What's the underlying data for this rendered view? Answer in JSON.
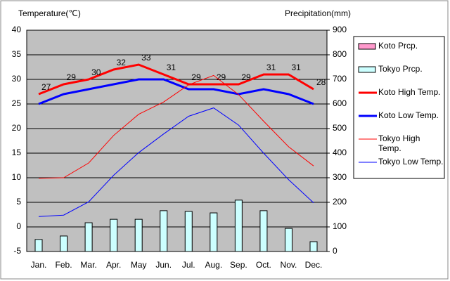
{
  "chart_data": {
    "type": "line",
    "ylabel": "Temperature(℃)",
    "y2label": "Precipitation(mm)",
    "categories": [
      "Jan.",
      "Feb.",
      "Mar.",
      "Apr.",
      "May",
      "Jun.",
      "Jul.",
      "Aug.",
      "Sep.",
      "Oct.",
      "Nov.",
      "Dec."
    ],
    "ylim": [
      -5,
      40
    ],
    "yticks": [
      -5,
      0,
      5,
      10,
      15,
      20,
      25,
      30,
      35,
      40
    ],
    "y2lim": [
      0,
      900
    ],
    "y2ticks": [
      0,
      100,
      200,
      300,
      400,
      500,
      600,
      700,
      800,
      900
    ],
    "grid": true,
    "legend": "right",
    "series": [
      {
        "name": "Koto Prcp.",
        "type": "bar",
        "axis": "y2",
        "color": "#ff99cc",
        "values": [
          null,
          null,
          null,
          null,
          null,
          null,
          null,
          null,
          null,
          null,
          null,
          null
        ]
      },
      {
        "name": "Tokyo Prcp.",
        "type": "bar",
        "axis": "y2",
        "color": "#ccffff",
        "values": [
          49,
          63,
          117,
          131,
          131,
          166,
          163,
          157,
          209,
          166,
          94,
          40
        ]
      },
      {
        "name": "Koto High Temp.",
        "type": "line",
        "color": "#ff0000",
        "width": 3,
        "values": [
          27,
          29,
          30,
          32,
          33,
          31,
          29,
          29,
          29,
          31,
          31,
          28
        ],
        "value_labels": [
          "27",
          "29",
          "30",
          "32",
          "33",
          "31",
          "29",
          "29",
          "29",
          "31",
          "31",
          "28"
        ]
      },
      {
        "name": "Koto Low Temp.",
        "type": "line",
        "color": "#0000ff",
        "width": 3,
        "values": [
          25,
          27,
          28,
          29,
          30,
          30,
          28,
          28,
          27,
          28,
          27,
          25
        ]
      },
      {
        "name": "Tokyo High Temp.",
        "type": "line",
        "color": "#ff0000",
        "width": 1,
        "values": [
          9.9,
          10.0,
          13.0,
          18.6,
          22.9,
          25.4,
          28.9,
          30.8,
          26.9,
          21.5,
          16.3,
          12.4
        ]
      },
      {
        "name": "Tokyo Low Temp.",
        "type": "line",
        "color": "#0000ff",
        "width": 1,
        "values": [
          2.1,
          2.4,
          5.1,
          10.5,
          15.1,
          18.9,
          22.5,
          24.2,
          20.7,
          15.0,
          9.6,
          4.9
        ]
      }
    ]
  }
}
